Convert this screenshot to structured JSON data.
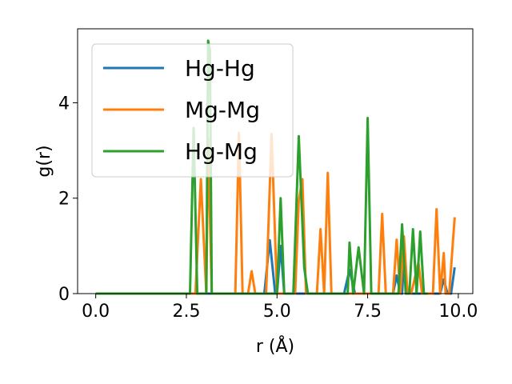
{
  "chart_data": {
    "type": "line",
    "xlabel": "r (Å)",
    "ylabel": "g(r)",
    "xlim": [
      -0.5,
      10.4
    ],
    "ylim": [
      0,
      5.55
    ],
    "xticks": [
      0.0,
      2.5,
      5.0,
      7.5,
      10.0
    ],
    "xtick_labels": [
      "0.0",
      "2.5",
      "5.0",
      "7.5",
      "10.0"
    ],
    "yticks": [
      0,
      2,
      4
    ],
    "ytick_labels": [
      "0",
      "2",
      "4"
    ],
    "grid": false,
    "legend_position": "top-left",
    "series": [
      {
        "name": "Hg-Hg",
        "color": "#1f77b4",
        "x": [
          0,
          4.65,
          4.8,
          4.95,
          5.0,
          5.1,
          5.2,
          6.85,
          7.0,
          7.15,
          8.2,
          8.3,
          8.4,
          8.45,
          8.5,
          8.6,
          9.5,
          9.6,
          9.7,
          9.8,
          9.9
        ],
        "y": [
          0,
          0,
          1.12,
          0,
          0,
          1.0,
          0,
          0,
          0.5,
          0,
          0,
          0.38,
          0,
          0,
          0.72,
          0,
          0,
          0.3,
          0,
          0,
          0.55
        ]
      },
      {
        "name": "Mg-Mg",
        "color": "#ff7f0e",
        "x": [
          0,
          2.75,
          2.9,
          3.05,
          3.1,
          3.2,
          3.85,
          3.95,
          4.05,
          4.2,
          4.3,
          4.4,
          4.7,
          4.85,
          5.0,
          5.5,
          5.6,
          5.7,
          5.8,
          6.1,
          6.2,
          6.3,
          6.4,
          6.5,
          7.8,
          7.9,
          8.0,
          8.2,
          8.3,
          8.4,
          8.5,
          8.6,
          8.7,
          8.9,
          9.0,
          9.1,
          9.3,
          9.4,
          9.5,
          9.6,
          9.65,
          9.75,
          9.9
        ],
        "y": [
          0,
          0,
          2.4,
          0,
          3.25,
          0,
          0,
          3.37,
          0,
          0,
          0.47,
          0,
          0,
          3.35,
          0,
          0,
          1.95,
          2.4,
          0,
          0,
          1.35,
          0,
          2.53,
          0,
          0,
          1.67,
          0,
          0,
          1.13,
          0,
          1.2,
          0,
          0,
          0.65,
          0,
          0,
          0,
          1.77,
          0,
          0.85,
          0,
          0,
          1.6
        ]
      },
      {
        "name": "Hg-Mg",
        "color": "#2ca02c",
        "x": [
          0,
          2.6,
          2.7,
          2.8,
          3.05,
          3.1,
          3.15,
          3.2,
          4.9,
          5.0,
          5.1,
          5.2,
          5.45,
          5.6,
          5.75,
          5.85,
          6.95,
          7.0,
          7.1,
          7.25,
          7.4,
          7.5,
          7.6,
          8.35,
          8.45,
          8.55,
          8.65,
          8.75,
          8.85,
          8.95,
          9.05,
          9.15
        ],
        "y": [
          0,
          0,
          3.47,
          0,
          0,
          5.3,
          5.1,
          0,
          0,
          0,
          2.0,
          0,
          0,
          3.3,
          0.55,
          0,
          0,
          1.07,
          0,
          0.97,
          0,
          3.68,
          0,
          0,
          1.45,
          0,
          0,
          1.35,
          0,
          1.3,
          0,
          0
        ]
      }
    ]
  }
}
